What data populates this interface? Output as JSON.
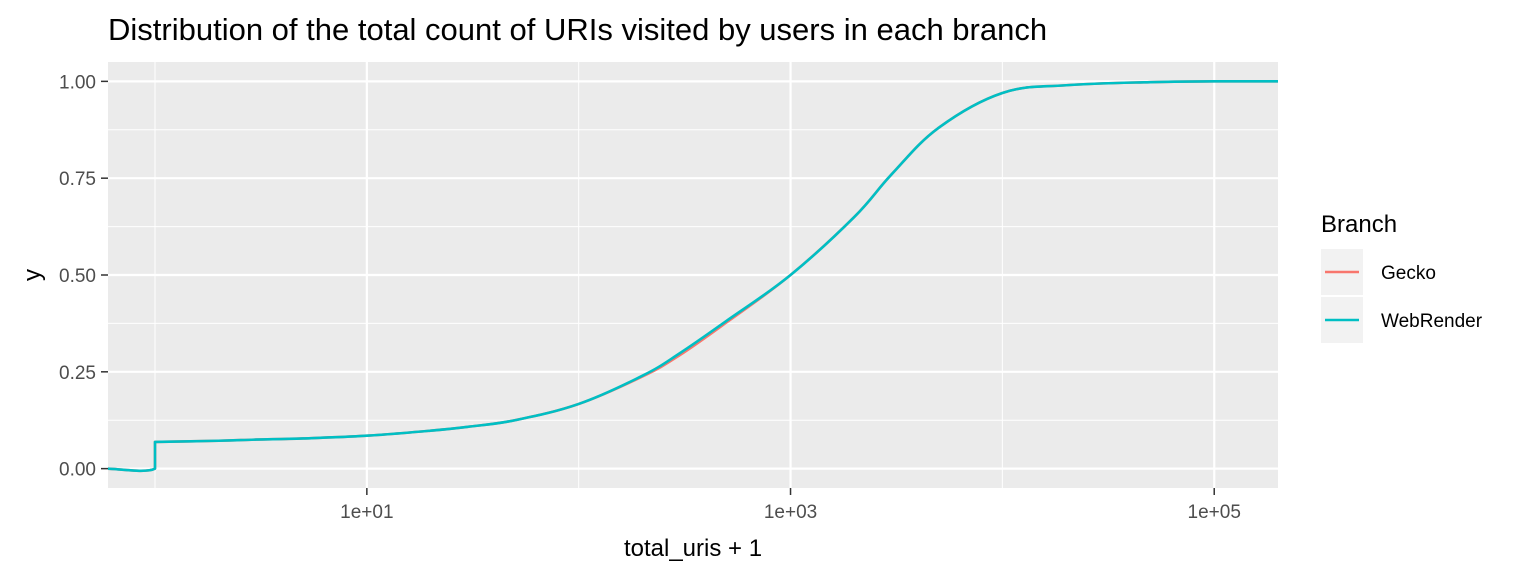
{
  "chart_data": {
    "type": "line",
    "title": "Distribution of the total count of URIs visited by users in each branch",
    "xlabel": "total_uris + 1",
    "ylabel": "y",
    "x_scale": "log10",
    "xlim": [
      0.6,
      200000
    ],
    "ylim": [
      -0.05,
      1.05
    ],
    "x_ticks": [
      10,
      1000,
      100000
    ],
    "x_tick_labels": [
      "1e+01",
      "1e+03",
      "1e+05"
    ],
    "y_ticks": [
      0,
      0.25,
      0.5,
      0.75,
      1
    ],
    "y_tick_labels": [
      "0.00",
      "0.25",
      "0.50",
      "0.75",
      "1.00"
    ],
    "grid": true,
    "legend": {
      "title": "Branch",
      "position": "right"
    },
    "series": [
      {
        "name": "Gecko",
        "color": "#F8766D",
        "x": [
          0.6,
          1,
          1,
          2,
          3,
          5,
          10,
          20,
          30,
          50,
          100,
          200,
          300,
          500,
          1000,
          2000,
          3000,
          5000,
          10000,
          20000,
          50000,
          100000,
          200000
        ],
        "y": [
          0,
          0,
          0.069,
          0.072,
          0.075,
          0.078,
          0.085,
          0.098,
          0.108,
          0.125,
          0.167,
          0.238,
          0.293,
          0.378,
          0.5,
          0.65,
          0.76,
          0.88,
          0.97,
          0.99,
          0.998,
          1,
          1
        ]
      },
      {
        "name": "WebRender",
        "color": "#00BFC4",
        "x": [
          0.6,
          1,
          1,
          2,
          3,
          5,
          10,
          20,
          30,
          50,
          100,
          200,
          300,
          500,
          1000,
          2000,
          3000,
          5000,
          10000,
          20000,
          50000,
          100000,
          200000
        ],
        "y": [
          0,
          0,
          0.069,
          0.072,
          0.075,
          0.078,
          0.085,
          0.098,
          0.108,
          0.125,
          0.167,
          0.24,
          0.298,
          0.382,
          0.5,
          0.65,
          0.76,
          0.88,
          0.97,
          0.99,
          0.998,
          1,
          1
        ]
      }
    ]
  }
}
